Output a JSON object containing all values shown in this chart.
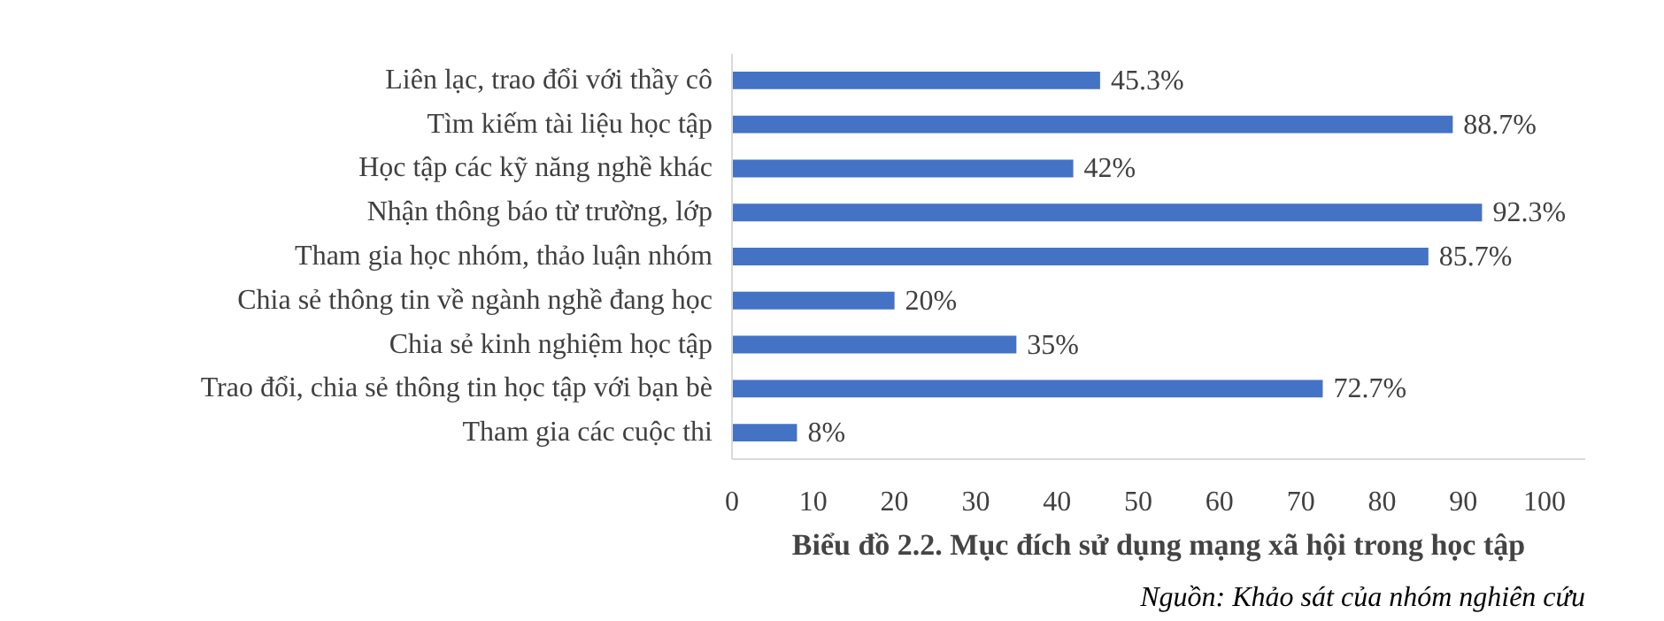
{
  "chart_data": {
    "type": "bar",
    "orientation": "horizontal",
    "title": "Biểu đồ 2.2. Mục đích sử dụng mạng xã hội trong học tập",
    "categories": [
      "Liên lạc, trao đổi với thầy cô",
      "Tìm kiếm tài liệu học tập",
      "Học tập các kỹ năng nghề khác",
      "Nhận thông báo từ trường, lớp",
      "Tham gia học nhóm, thảo luận nhóm",
      "Chia sẻ thông tin về ngành nghề đang học",
      "Chia sẻ kinh nghiệm học tập",
      "Trao đổi, chia sẻ thông tin học tập với bạn bè",
      "Tham gia các cuộc thi"
    ],
    "values": [
      45.3,
      88.7,
      42,
      92.3,
      85.7,
      20,
      35,
      72.7,
      8
    ],
    "value_labels": [
      "45.3%",
      "88.7%",
      "42%",
      "92.3%",
      "85.7%",
      "20%",
      "35%",
      "72.7%",
      "8%"
    ],
    "color": "#4472c4",
    "xlim": [
      0,
      105
    ],
    "xticks": [
      0,
      10,
      20,
      30,
      40,
      50,
      60,
      70,
      80,
      90,
      100
    ],
    "grid": false,
    "annotations": [
      "Nguồn: Khảo sát của nhóm nghiên cứu"
    ]
  }
}
